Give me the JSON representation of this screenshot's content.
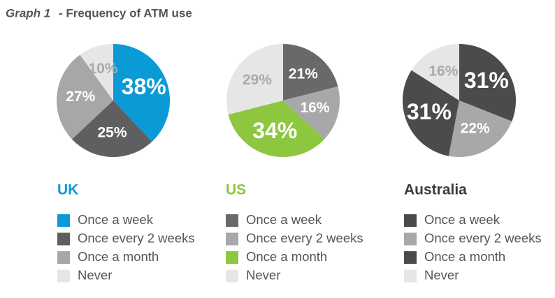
{
  "header": {
    "label": "Graph 1",
    "title": "- Frequency of ATM use"
  },
  "chart_data": [
    {
      "type": "pie",
      "title": "UK",
      "title_color": "#0a9ad6",
      "categories": [
        "Once a week",
        "Once every 2 weeks",
        "Once a month",
        "Never"
      ],
      "values": [
        38,
        25,
        27,
        10
      ],
      "value_labels": [
        "38%",
        "25%",
        "27%",
        "10%"
      ],
      "colors": [
        "#0a9ad6",
        "#5f5f61",
        "#a7a7a9",
        "#e6e6e7"
      ]
    },
    {
      "type": "pie",
      "title": "US",
      "title_color": "#8dc63f",
      "categories": [
        "Once a week",
        "Once every 2 weeks",
        "Once a month",
        "Never"
      ],
      "values": [
        21,
        16,
        34,
        29
      ],
      "value_labels": [
        "21%",
        "16%",
        "34%",
        "29%"
      ],
      "colors": [
        "#69696b",
        "#a8a8aa",
        "#8dc63f",
        "#e6e6e7"
      ]
    },
    {
      "type": "pie",
      "title": "Australia",
      "title_color": "#3c3c3e",
      "categories": [
        "Once a week",
        "Once every 2 weeks",
        "Once a month",
        "Never"
      ],
      "values": [
        31,
        22,
        31,
        16
      ],
      "value_labels": [
        "31%",
        "22%",
        "31%",
        "16%"
      ],
      "colors": [
        "#4b4b4d",
        "#a8a8aa",
        "#4b4b4d",
        "#e6e6e7"
      ]
    }
  ]
}
